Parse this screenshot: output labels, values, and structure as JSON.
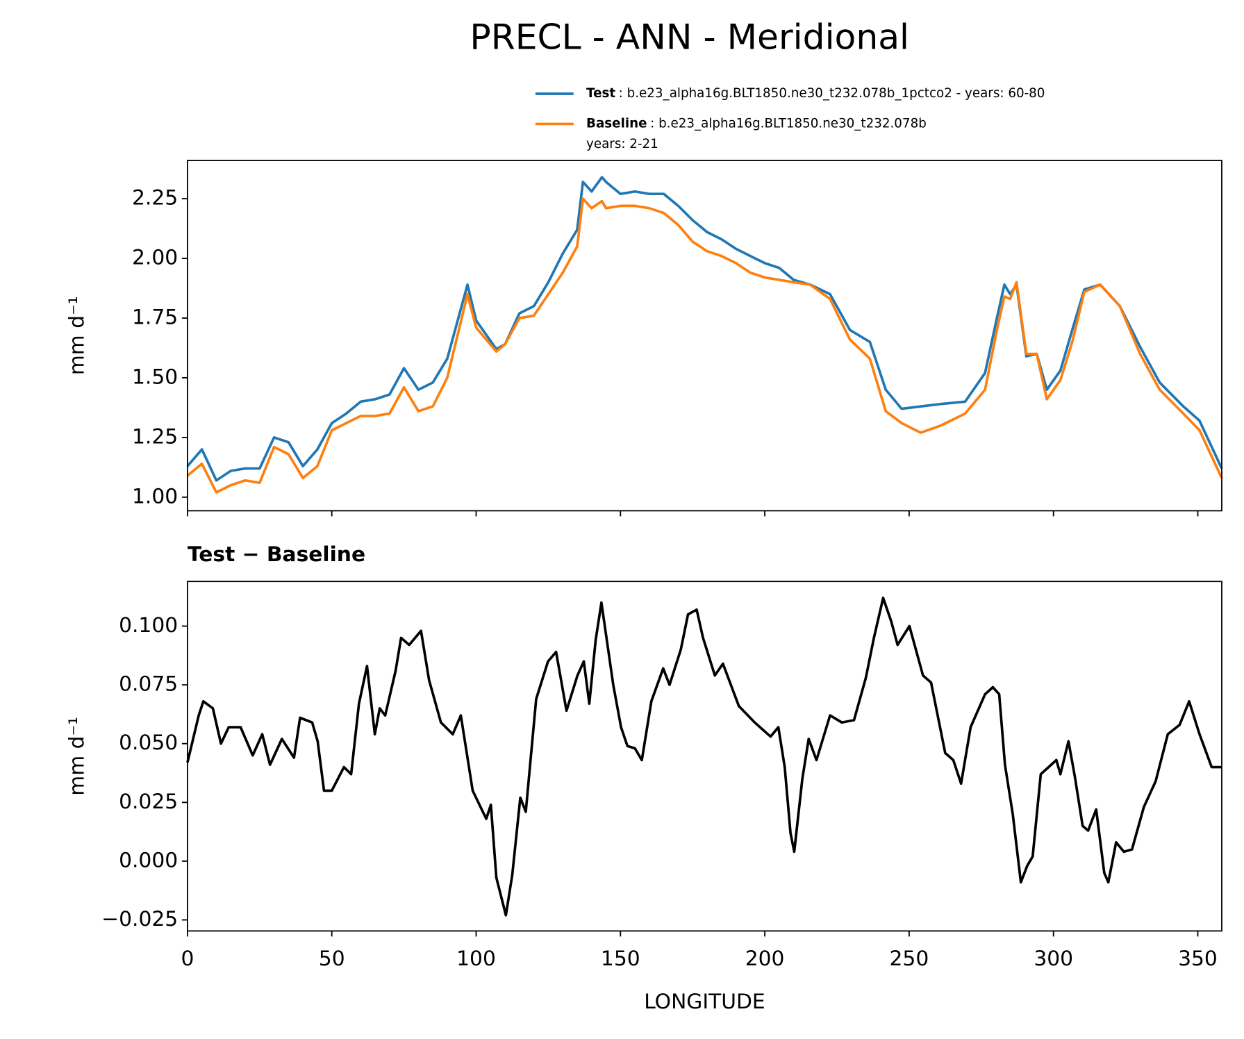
{
  "title": "PRECL - ANN - Meridional",
  "chart_data": [
    {
      "type": "line",
      "ylabel": "mm d⁻¹",
      "x": [
        0,
        5,
        10,
        15,
        20,
        25,
        30,
        35,
        40,
        45,
        50,
        55,
        60,
        65,
        70,
        75,
        80,
        85,
        90,
        97,
        100,
        107,
        110,
        115,
        120,
        125,
        130,
        135,
        137,
        140,
        143.6,
        145,
        150,
        155,
        160,
        165,
        170,
        175,
        180,
        185,
        190,
        195,
        200,
        205,
        210,
        215.7,
        222.6,
        229.5,
        236.4,
        241.9,
        247.4,
        254,
        261,
        269.4,
        276.3,
        280.4,
        283,
        285,
        287.2,
        290.6,
        294.2,
        297.7,
        302.4,
        306.5,
        310.7,
        316.2,
        323,
        330,
        336.8,
        345,
        350.6,
        358.3
      ],
      "series": [
        {
          "name": "Test",
          "description": [
            ": b.e23_alpha16g.BLT1850.ne30_t232.078b_1pctco2 - years: 60-80"
          ],
          "color": "#1f77b4",
          "values": [
            1.13,
            1.2,
            1.07,
            1.11,
            1.12,
            1.12,
            1.25,
            1.23,
            1.13,
            1.2,
            1.31,
            1.35,
            1.4,
            1.41,
            1.43,
            1.54,
            1.45,
            1.48,
            1.58,
            1.89,
            1.74,
            1.62,
            1.64,
            1.77,
            1.8,
            1.9,
            2.02,
            2.12,
            2.32,
            2.28,
            2.34,
            2.32,
            2.27,
            2.28,
            2.27,
            2.27,
            2.22,
            2.16,
            2.11,
            2.08,
            2.04,
            2.01,
            1.98,
            1.96,
            1.91,
            1.89,
            1.85,
            1.7,
            1.65,
            1.45,
            1.37,
            1.38,
            1.39,
            1.4,
            1.52,
            1.75,
            1.89,
            1.85,
            1.89,
            1.59,
            1.6,
            1.45,
            1.53,
            1.7,
            1.87,
            1.89,
            1.8,
            1.63,
            1.48,
            1.38,
            1.32,
            1.12
          ]
        },
        {
          "name": "Baseline",
          "description": [
            ": b.e23_alpha16g.BLT1850.ne30_t232.078b",
            "years: 2-21"
          ],
          "color": "#ff7f0e",
          "values": [
            1.09,
            1.14,
            1.02,
            1.05,
            1.07,
            1.06,
            1.21,
            1.18,
            1.08,
            1.13,
            1.28,
            1.31,
            1.34,
            1.34,
            1.35,
            1.46,
            1.36,
            1.38,
            1.5,
            1.85,
            1.71,
            1.61,
            1.64,
            1.75,
            1.76,
            1.85,
            1.94,
            2.05,
            2.25,
            2.21,
            2.24,
            2.21,
            2.22,
            2.22,
            2.21,
            2.19,
            2.14,
            2.07,
            2.03,
            2.01,
            1.98,
            1.94,
            1.92,
            1.91,
            1.9,
            1.89,
            1.83,
            1.66,
            1.58,
            1.36,
            1.31,
            1.27,
            1.3,
            1.35,
            1.45,
            1.7,
            1.84,
            1.83,
            1.9,
            1.6,
            1.6,
            1.41,
            1.49,
            1.65,
            1.86,
            1.89,
            1.8,
            1.6,
            1.45,
            1.35,
            1.28,
            1.08
          ]
        }
      ],
      "xlim": [
        0,
        358.3
      ],
      "xticks": [
        0,
        50,
        100,
        150,
        200,
        250,
        300,
        350
      ],
      "ylim": [
        0.943,
        2.41
      ],
      "yticks": [
        {
          "value": 1,
          "label": "1.00"
        },
        1.25,
        {
          "value": 1.5,
          "label": "1.50"
        },
        1.75,
        {
          "value": 2,
          "label": "2.00"
        },
        2.25
      ]
    },
    {
      "type": "line",
      "title": "Test − Baseline",
      "xlabel": "LONGITUDE",
      "ylabel": "mm d⁻¹",
      "x": [
        0,
        3.9,
        5.5,
        8.8,
        11.6,
        14.3,
        18.4,
        22.6,
        25.9,
        28.6,
        32.7,
        36.9,
        39,
        43.2,
        45.1,
        47.3,
        50,
        54.2,
        56.7,
        59.4,
        62.2,
        64.9,
        66.6,
        68.5,
        72.1,
        74,
        76.8,
        80.9,
        83.7,
        87.8,
        91.9,
        94.7,
        98.8,
        103.5,
        105.1,
        107,
        110.3,
        112.5,
        115.3,
        117.2,
        120.8,
        124.9,
        127.7,
        131.3,
        135.1,
        137.3,
        139.2,
        141.4,
        143.4,
        147.5,
        150.2,
        152.4,
        155,
        157.4,
        160.7,
        164.8,
        167,
        170.9,
        173.4,
        176.4,
        178.6,
        182.7,
        185.5,
        191,
        196.5,
        202,
        204.7,
        206.9,
        208.9,
        210.2,
        213,
        215.2,
        217.9,
        222.6,
        226.7,
        230.9,
        235,
        237.8,
        241,
        243.8,
        246,
        250.1,
        254.8,
        257.6,
        262.5,
        265.3,
        268,
        271.3,
        276.3,
        279,
        281.2,
        283.2,
        285.9,
        288.7,
        290.9,
        292.8,
        295.6,
        301,
        302.4,
        305.2,
        307.4,
        310.1,
        312,
        314.8,
        317.6,
        319,
        321.7,
        324.4,
        327.2,
        331.3,
        335.4,
        339.6,
        343.7,
        347,
        350.6,
        354.8,
        358.3
      ],
      "series": [
        {
          "color": "#000000",
          "values": [
            0.042,
            0.062,
            0.068,
            0.065,
            0.05,
            0.057,
            0.057,
            0.045,
            0.054,
            0.041,
            0.052,
            0.044,
            0.061,
            0.059,
            0.051,
            0.03,
            0.03,
            0.04,
            0.037,
            0.067,
            0.083,
            0.054,
            0.065,
            0.062,
            0.081,
            0.095,
            0.092,
            0.098,
            0.077,
            0.059,
            0.054,
            0.062,
            0.03,
            0.018,
            0.024,
            -0.007,
            -0.023,
            -0.006,
            0.027,
            0.021,
            0.069,
            0.085,
            0.089,
            0.064,
            0.079,
            0.085,
            0.067,
            0.094,
            0.11,
            0.075,
            0.057,
            0.049,
            0.048,
            0.043,
            0.068,
            0.082,
            0.075,
            0.09,
            0.105,
            0.107,
            0.095,
            0.079,
            0.084,
            0.066,
            0.059,
            0.053,
            0.057,
            0.04,
            0.012,
            0.004,
            0.035,
            0.052,
            0.043,
            0.062,
            0.059,
            0.06,
            0.078,
            0.095,
            0.112,
            0.102,
            0.092,
            0.1,
            0.079,
            0.076,
            0.046,
            0.043,
            0.033,
            0.057,
            0.071,
            0.074,
            0.071,
            0.041,
            0.02,
            -0.009,
            -0.002,
            0.002,
            0.037,
            0.043,
            0.037,
            0.051,
            0.036,
            0.015,
            0.013,
            0.022,
            -0.005,
            -0.009,
            0.008,
            0.004,
            0.005,
            0.023,
            0.034,
            0.054,
            0.058,
            0.068,
            0.054,
            0.04,
            0.04
          ]
        }
      ],
      "xlim": [
        0,
        358.3
      ],
      "xticks": [
        0,
        50,
        100,
        150,
        200,
        250,
        300,
        350
      ],
      "ylim": [
        -0.0297,
        0.119
      ],
      "yticks": [
        {
          "value": -0.025,
          "label": "−0.025"
        },
        {
          "value": 0,
          "label": "0.000"
        },
        0.025,
        {
          "value": 0.05,
          "label": "0.050"
        },
        0.075,
        {
          "value": 0.1,
          "label": "0.100"
        }
      ]
    }
  ]
}
